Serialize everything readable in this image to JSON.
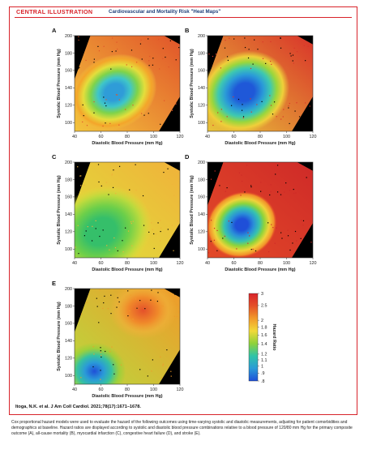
{
  "header": {
    "title": "CENTRAL ILLUSTRATION",
    "subtitle": "Cardiovascular and Mortality Risk \"Heat Maps\""
  },
  "citation": "Itoga, N.K. et al. J Am Coll Cardiol. 2021;78(17):1671–1678.",
  "caption": "Cox proportional hazard models were used to evaluate the hazard of the following outcomes using time-varying systolic and diastolic measurements, adjusting for patient comorbidities and demographics at baseline. Hazard ratios are displayed according to systolic and diastolic blood pressure combinations relative to a blood pressure of 120/80 mm Hg for the primary composite outcome (A), all-cause mortality (B), myocardial infarction (C), congestive heart failure (D), and stroke (E).",
  "colors": {
    "frame": "#d8232a",
    "subtitle": "#1f3f7a",
    "missing_data": "#000000"
  },
  "chart_data": [
    {
      "type": "heatmap",
      "label": "A",
      "xlabel": "Diastolic Blood Pressure (mm Hg)",
      "ylabel": "Systolic Blood Pressure (mm Hg)",
      "xlim": [
        40,
        120
      ],
      "ylim": [
        90,
        200
      ],
      "xticks": [
        "40",
        "60",
        "80",
        "100",
        "120"
      ],
      "yticks": [
        "100",
        "120",
        "140",
        "160",
        "180",
        "200"
      ],
      "minimum": {
        "x": 70,
        "y": 135,
        "hr": 0.9
      }
    },
    {
      "type": "heatmap",
      "label": "B",
      "xlabel": "Diastolic Blood Pressure (mm Hg)",
      "ylabel": "Systolic Blood Pressure (mm Hg)",
      "xlim": [
        40,
        120
      ],
      "ylim": [
        90,
        200
      ],
      "xticks": [
        "40",
        "60",
        "80",
        "100",
        "120"
      ],
      "yticks": [
        "100",
        "120",
        "140",
        "160",
        "180",
        "200"
      ],
      "minimum": {
        "x": 68,
        "y": 135,
        "hr": 0.85
      }
    },
    {
      "type": "heatmap",
      "label": "C",
      "xlabel": "Diastolic Blood Pressure (mm Hg)",
      "ylabel": "Systolic Blood Pressure (mm Hg)",
      "xlim": [
        40,
        120
      ],
      "ylim": [
        90,
        200
      ],
      "xticks": [
        "40",
        "60",
        "80",
        "100",
        "120"
      ],
      "yticks": [
        "100",
        "120",
        "140",
        "160",
        "180",
        "200"
      ],
      "minimum": {
        "x": 60,
        "y": 120,
        "hr": 1.1
      }
    },
    {
      "type": "heatmap",
      "label": "D",
      "xlabel": "Diastolic Blood Pressure (mm Hg)",
      "ylabel": "Systolic Blood Pressure (mm Hg)",
      "xlim": [
        40,
        120
      ],
      "ylim": [
        90,
        200
      ],
      "xticks": [
        "40",
        "60",
        "80",
        "100",
        "120"
      ],
      "yticks": [
        "100",
        "120",
        "140",
        "160",
        "180",
        "200"
      ],
      "minimum": {
        "x": 66,
        "y": 128,
        "hr": 0.85
      }
    },
    {
      "type": "heatmap",
      "label": "E",
      "xlabel": "Diastolic Blood Pressure (mm Hg)",
      "ylabel": "Systolic Blood Pressure (mm Hg)",
      "xlim": [
        40,
        120
      ],
      "ylim": [
        90,
        200
      ],
      "xticks": [
        "40",
        "60",
        "80",
        "100",
        "120"
      ],
      "yticks": [
        "100",
        "120",
        "140",
        "160",
        "180",
        "200"
      ],
      "minimum": {
        "x": 55,
        "y": 105,
        "hr": 0.85
      },
      "maximum": {
        "x": 92,
        "y": 175,
        "hr": 2.6
      }
    }
  ],
  "colorbar": {
    "title": "Hazard Ratio",
    "ticks": [
      3,
      2.5,
      2,
      1.8,
      1.6,
      1.4,
      1.2,
      1.1,
      1,
      0.9,
      0.8
    ],
    "labels": [
      "3",
      "2.5",
      "2",
      "1.8",
      "1.6",
      "1.4",
      "1.2",
      "1.1",
      "1",
      ".9",
      ".8"
    ],
    "stops": [
      "#1e4fd8",
      "#2a9ad8",
      "#2fc4a8",
      "#8fd23a",
      "#f1d93a",
      "#f29a2b",
      "#e4512a",
      "#d8232a"
    ]
  }
}
